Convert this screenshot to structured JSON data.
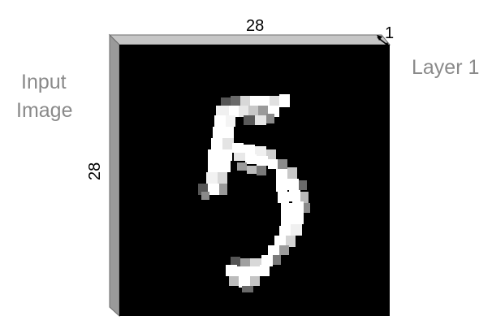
{
  "labels": {
    "input_line1": "Input",
    "input_line2": "Image",
    "layer": "Layer 1",
    "width": "28",
    "height": "28",
    "depth": "1"
  },
  "colors": {
    "label_gray": "#8a8a8a",
    "side_face": "#9a9a9a",
    "top_face": "#c6c6c6",
    "front_face": "#000000",
    "edge": "#6e6e6e"
  },
  "digit_shown": "5"
}
